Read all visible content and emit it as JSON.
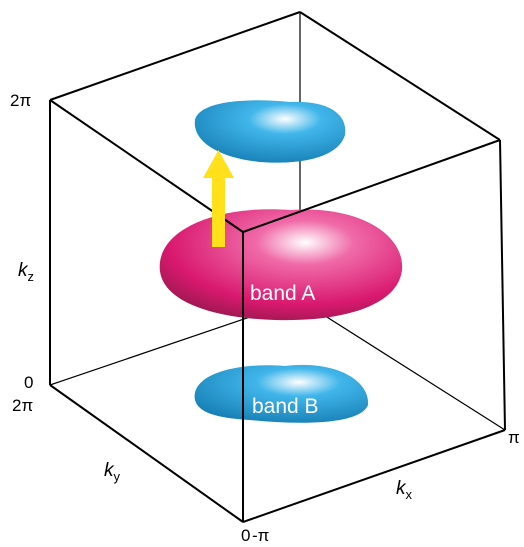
{
  "axes": {
    "kz": {
      "symbol": "k",
      "subscript": "z",
      "top": "2π",
      "bottom": "0"
    },
    "ky": {
      "symbol": "k",
      "subscript": "y",
      "top": "2π",
      "bottom": "0"
    },
    "kx": {
      "symbol": "k",
      "subscript": "x",
      "left": "-π",
      "right": "π"
    }
  },
  "bands": {
    "a": "band A",
    "b": "band B"
  }
}
